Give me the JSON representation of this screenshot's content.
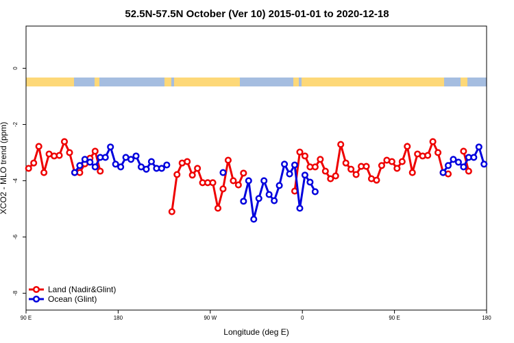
{
  "chart_data": {
    "type": "line",
    "title": "52.5N-57.5N October (Ver 10)   2015-01-01 to 2020-12-18",
    "x_label": "Longitude (deg E)",
    "y_label": "XCO2 - MLO trend (ppm)",
    "xlim": [
      90,
      540
    ],
    "xticks": [
      {
        "value": 90,
        "label": "90 E"
      },
      180,
      {
        "value": 270,
        "label": "90 W"
      },
      {
        "value": 360,
        "label": "0"
      },
      {
        "value": 450,
        "label": "90 E"
      },
      {
        "value": 540,
        "label": "180"
      }
    ],
    "ylim": [
      -8.6,
      1.5
    ],
    "yticks": [
      0,
      -2,
      -4,
      -6,
      -8
    ],
    "legend": "bottom-left",
    "series": [
      {
        "name": "Land (Nadir&Glint)",
        "color": "#ee0000",
        "x": [
          92.5,
          97.5,
          102.5,
          107.5,
          112.5,
          117.5,
          122.5,
          127.5,
          132.5,
          137.5,
          142.5,
          147.5,
          152.5,
          157.5,
          162.5,
          167.5,
          232.5,
          237.5,
          242.5,
          247.5,
          252.5,
          257.5,
          262.5,
          267.5,
          272.5,
          277.5,
          282.5,
          287.5,
          292.5,
          297.5,
          302.5,
          307.5,
          352.5,
          357.5,
          362.5,
          367.5,
          372.5,
          377.5,
          382.5,
          387.5,
          392.5,
          397.5,
          402.5,
          407.5,
          412.5,
          417.5,
          422.5,
          427.5,
          432.5,
          437.5,
          442.5,
          447.5,
          452.5,
          457.5,
          462.5,
          467.5,
          472.5,
          477.5,
          482.5,
          487.5,
          492.5,
          497.5,
          502.5,
          507.5,
          517.5,
          522.5
        ],
        "values": [
          -3.56,
          -3.37,
          -2.78,
          -3.71,
          -3.05,
          -3.12,
          -3.1,
          -2.61,
          -3.0,
          -3.71,
          -3.71,
          -3.4,
          -3.2,
          -2.95,
          -3.66,
          null,
          -5.1,
          -3.78,
          -3.37,
          -3.32,
          -3.8,
          -3.56,
          -4.07,
          -4.07,
          -4.07,
          -4.98,
          -4.29,
          -3.27,
          -4.0,
          -4.15,
          -3.73,
          null,
          -4.37,
          -2.98,
          -3.12,
          -3.51,
          -3.51,
          -3.24,
          -3.66,
          -3.93,
          -3.83,
          -2.71,
          -3.37,
          -3.59,
          -3.78,
          -3.49,
          -3.49,
          -3.93,
          -3.98,
          -3.46,
          -3.27,
          -3.32,
          -3.56,
          -3.32,
          -2.78,
          -3.71,
          -3.05,
          -3.12,
          -3.1,
          -2.61,
          -3.0,
          -3.71,
          -3.76,
          null,
          -2.95,
          -3.66
        ]
      },
      {
        "name": "Ocean (Glint)",
        "color": "#0000dd",
        "x": [
          137.5,
          142.5,
          147.5,
          152.5,
          157.5,
          162.5,
          167.5,
          172.5,
          177.5,
          182.5,
          187.5,
          192.5,
          197.5,
          202.5,
          207.5,
          212.5,
          217.5,
          222.5,
          227.5,
          232.5,
          282.5,
          287.5,
          302.5,
          307.5,
          312.5,
          317.5,
          322.5,
          327.5,
          332.5,
          337.5,
          342.5,
          347.5,
          352.5,
          357.5,
          362.5,
          367.5,
          372.5,
          377.5,
          497.5,
          502.5,
          507.5,
          512.5,
          517.5,
          522.5,
          527.5,
          532.5,
          537.5
        ],
        "values": [
          -3.71,
          -3.46,
          -3.24,
          -3.34,
          -3.51,
          -3.17,
          -3.17,
          -2.8,
          -3.41,
          -3.51,
          -3.17,
          -3.24,
          -3.12,
          -3.51,
          -3.59,
          -3.32,
          -3.56,
          -3.56,
          -3.44,
          null,
          -3.71,
          null,
          -4.73,
          -4.0,
          -5.37,
          -4.63,
          -4.0,
          -4.49,
          -4.71,
          -4.17,
          -3.41,
          -3.76,
          -3.44,
          -4.98,
          -3.8,
          -4.05,
          -4.39,
          null,
          -3.71,
          -3.46,
          -3.24,
          -3.34,
          -3.51,
          -3.17,
          -3.17,
          -2.8,
          -3.41
        ]
      }
    ]
  }
}
